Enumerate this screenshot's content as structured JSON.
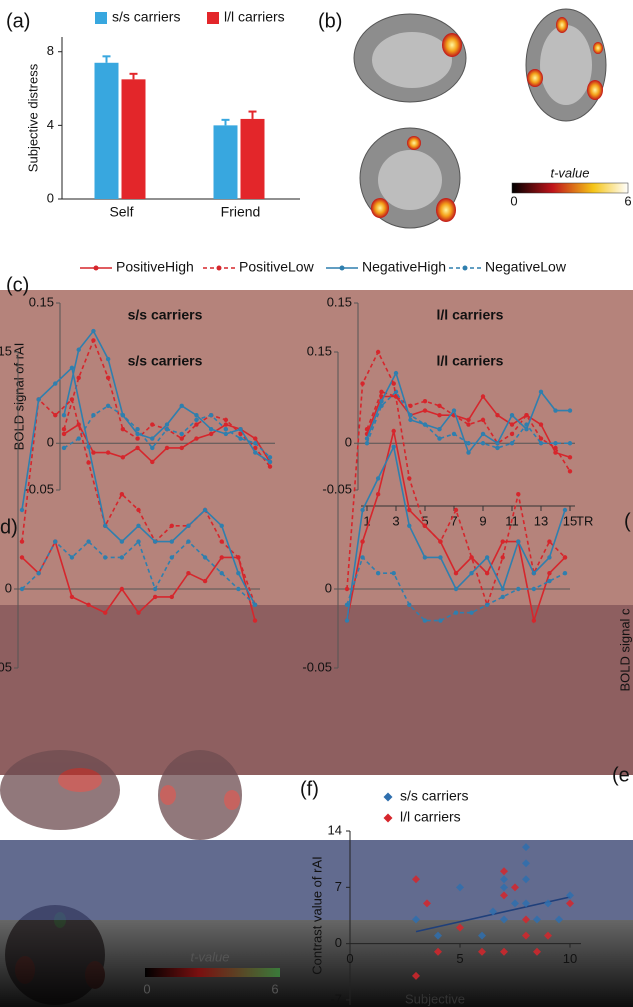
{
  "panel_labels": [
    "(a)",
    "(b)",
    "(c)",
    "d)",
    "(f)",
    "(e",
    "("
  ],
  "side_label": "BOLD signal c",
  "colorbars": [
    {
      "title": "t-value",
      "min": 0,
      "max": 6
    },
    {
      "title": "t-value",
      "min": 0,
      "max": 6
    }
  ],
  "chart_data": [
    {
      "type": "bar",
      "ylabel": "Subjective distress",
      "categories": [
        "Self",
        "Friend"
      ],
      "series": [
        {
          "name": "s/s carriers",
          "color": "#38a7df",
          "values": [
            7.4,
            4.0
          ],
          "errors": [
            0.35,
            0.3
          ]
        },
        {
          "name": "l/l carriers",
          "color": "#e3262a",
          "values": [
            6.5,
            4.35
          ],
          "errors": [
            0.3,
            0.4
          ]
        }
      ],
      "ylim": [
        0,
        8.8
      ],
      "yticks": [
        0,
        4,
        8
      ]
    },
    {
      "type": "line",
      "title": "s/s carriers",
      "ylabel": "BOLD signal of rAI",
      "x": [
        1,
        2,
        3,
        4,
        5,
        6,
        7,
        8,
        9,
        10,
        11,
        12,
        13,
        14,
        15
      ],
      "xlim": [
        1,
        15
      ],
      "ylim": [
        -0.05,
        0.15
      ],
      "yticks": [
        -0.05,
        0,
        0.15
      ],
      "series": [
        {
          "name": "PositiveHigh",
          "color": "#d6262c",
          "dashed": false,
          "values": [
            0.01,
            0.02,
            -0.01,
            -0.01,
            -0.015,
            -0.005,
            -0.02,
            -0.005,
            -0.005,
            0.005,
            0.01,
            0.02,
            0.015,
            0.005,
            -0.02
          ]
        },
        {
          "name": "PositiveLow",
          "color": "#d6262c",
          "dashed": true,
          "values": [
            0.015,
            0.07,
            0.11,
            0.07,
            0.015,
            0.005,
            0.02,
            0.015,
            0.005,
            0.02,
            0.03,
            0.025,
            0.01,
            -0.005,
            -0.025
          ]
        },
        {
          "name": "NegativeHigh",
          "color": "#2f7fae",
          "dashed": false,
          "values": [
            0.03,
            0.1,
            0.12,
            0.09,
            0.03,
            0.01,
            0.005,
            0.02,
            0.04,
            0.03,
            0.015,
            0.01,
            0.015,
            -0.01,
            -0.02
          ]
        },
        {
          "name": "NegativeLow",
          "color": "#2f7fae",
          "dashed": true,
          "values": [
            -0.005,
            0.005,
            0.03,
            0.04,
            0.03,
            0.015,
            -0.005,
            0.015,
            0.01,
            0.025,
            0.03,
            0.015,
            0.005,
            0.0,
            -0.015
          ]
        }
      ]
    },
    {
      "type": "line",
      "title": "l/l carriers",
      "xlabel": "TR",
      "x": [
        1,
        2,
        3,
        4,
        5,
        6,
        7,
        8,
        9,
        10,
        11,
        12,
        13,
        14,
        15
      ],
      "xlim": [
        1,
        15
      ],
      "xticks": [
        1,
        3,
        5,
        7,
        9,
        11,
        13,
        15
      ],
      "ylim": [
        -0.05,
        0.15
      ],
      "yticks": [
        -0.05,
        0,
        0.15
      ],
      "series": [
        {
          "color": "#d6262c",
          "dashed": false,
          "values": [
            0.01,
            0.05,
            0.05,
            0.03,
            0.035,
            0.03,
            0.03,
            0.025,
            0.05,
            0.03,
            0.02,
            0.03,
            0.02,
            -0.01,
            -0.015
          ]
        },
        {
          "color": "#d6262c",
          "dashed": true,
          "values": [
            0.015,
            0.055,
            0.05,
            0.04,
            0.045,
            0.04,
            0.03,
            0.02,
            0.025,
            0.0,
            0.01,
            0.03,
            0.005,
            -0.005,
            -0.03
          ]
        },
        {
          "color": "#2f7fae",
          "dashed": false,
          "values": [
            0.005,
            0.045,
            0.075,
            0.025,
            0.02,
            0.015,
            0.035,
            -0.01,
            0.01,
            0.0,
            0.03,
            0.015,
            0.055,
            0.035,
            0.035
          ]
        },
        {
          "color": "#2f7fae",
          "dashed": true,
          "values": [
            0.0,
            0.04,
            0.055,
            0.03,
            0.02,
            0.005,
            0.01,
            0.0,
            0.0,
            -0.005,
            0.0,
            0.02,
            0.0,
            0.0,
            0.0
          ]
        }
      ]
    },
    {
      "type": "line",
      "title": "s/s carriers",
      "x": [
        1,
        2,
        3,
        4,
        5,
        6,
        7,
        8,
        9,
        10,
        11,
        12,
        13,
        14,
        15
      ],
      "xlim": [
        1,
        15
      ],
      "ylim": [
        -0.05,
        0.15
      ],
      "yticks": [
        -0.05,
        0,
        0.15
      ],
      "series": [
        {
          "color": "#d6262c",
          "dashed": false,
          "values": [
            0.02,
            0.01,
            0.03,
            -0.005,
            -0.01,
            -0.015,
            0.0,
            -0.015,
            -0.005,
            -0.005,
            0.01,
            0.005,
            0.02,
            0.02,
            -0.02
          ]
        },
        {
          "color": "#d6262c",
          "dashed": true,
          "values": [
            0.03,
            0.12,
            0.11,
            0.12,
            0.08,
            0.04,
            0.06,
            0.05,
            0.03,
            0.04,
            0.04,
            0.05,
            0.03,
            0.02,
            -0.01
          ]
        },
        {
          "color": "#2f7fae",
          "dashed": false,
          "values": [
            0.05,
            0.12,
            0.13,
            0.14,
            0.09,
            0.04,
            0.03,
            0.04,
            0.03,
            0.03,
            0.04,
            0.05,
            0.04,
            0.01,
            -0.01
          ]
        },
        {
          "color": "#2f7fae",
          "dashed": true,
          "values": [
            0.0,
            0.01,
            0.03,
            0.02,
            0.03,
            0.02,
            0.02,
            0.03,
            0.0,
            0.02,
            0.03,
            0.02,
            0.01,
            0.0,
            -0.01
          ]
        }
      ]
    },
    {
      "type": "line",
      "title": "l/l carriers",
      "x": [
        1,
        2,
        3,
        4,
        5,
        6,
        7,
        8,
        9,
        10,
        11,
        12,
        13,
        14,
        15
      ],
      "xlim": [
        1,
        15
      ],
      "ylim": [
        -0.05,
        0.15
      ],
      "yticks": [
        -0.05,
        0,
        0.15
      ],
      "series": [
        {
          "color": "#d6262c",
          "dashed": false,
          "values": [
            -0.02,
            0.03,
            0.06,
            0.1,
            0.05,
            0.04,
            0.03,
            0.01,
            0.02,
            0.01,
            0.03,
            0.03,
            -0.02,
            0.01,
            0.02
          ]
        },
        {
          "color": "#d6262c",
          "dashed": true,
          "values": [
            0.0,
            0.13,
            0.15,
            0.13,
            0.07,
            0.04,
            0.03,
            0.05,
            0.02,
            -0.01,
            0.02,
            0.06,
            0.01,
            0.03,
            0.02
          ]
        },
        {
          "color": "#2f7fae",
          "dashed": false,
          "values": [
            -0.02,
            0.05,
            0.07,
            0.09,
            0.04,
            0.02,
            0.02,
            0.0,
            0.01,
            0.02,
            0.0,
            0.03,
            0.01,
            0.02,
            0.05
          ]
        },
        {
          "color": "#2f7fae",
          "dashed": true,
          "values": [
            -0.01,
            0.02,
            0.01,
            0.01,
            -0.01,
            -0.02,
            -0.02,
            -0.015,
            -0.015,
            -0.01,
            -0.005,
            0.0,
            0.0,
            0.005,
            0.01
          ]
        }
      ]
    },
    {
      "type": "scatter",
      "ylabel": "Contrast value of rAI",
      "xlabel": "Subjective",
      "xlim": [
        0,
        10.5
      ],
      "xticks": [
        0,
        5,
        10
      ],
      "ylim": [
        -7,
        14
      ],
      "yticks": [
        -7,
        0,
        7,
        14
      ],
      "series": [
        {
          "name": "s/s carriers",
          "color": "#2f6fae",
          "x": [
            3,
            4,
            5,
            6,
            6.5,
            7,
            7,
            7.5,
            8,
            8,
            8,
            8.5,
            9,
            9.5,
            10,
            7,
            8
          ],
          "values": [
            3,
            1,
            7,
            1,
            4,
            3,
            7,
            5,
            12,
            8,
            5,
            3,
            5,
            3,
            6,
            8,
            10
          ]
        },
        {
          "name": "l/l carriers",
          "color": "#d6262c",
          "x": [
            3,
            3,
            3.5,
            4,
            5,
            6,
            7,
            7,
            7,
            7.5,
            8,
            8,
            8.5,
            9,
            10
          ],
          "values": [
            -4,
            8,
            5,
            -1,
            2,
            -1,
            -1,
            6,
            9,
            7,
            1,
            3,
            -1,
            1,
            5
          ]
        }
      ],
      "trend": {
        "color": "#1f3f7a",
        "x": [
          3,
          10
        ],
        "values": [
          1.5,
          5.8
        ]
      }
    }
  ]
}
